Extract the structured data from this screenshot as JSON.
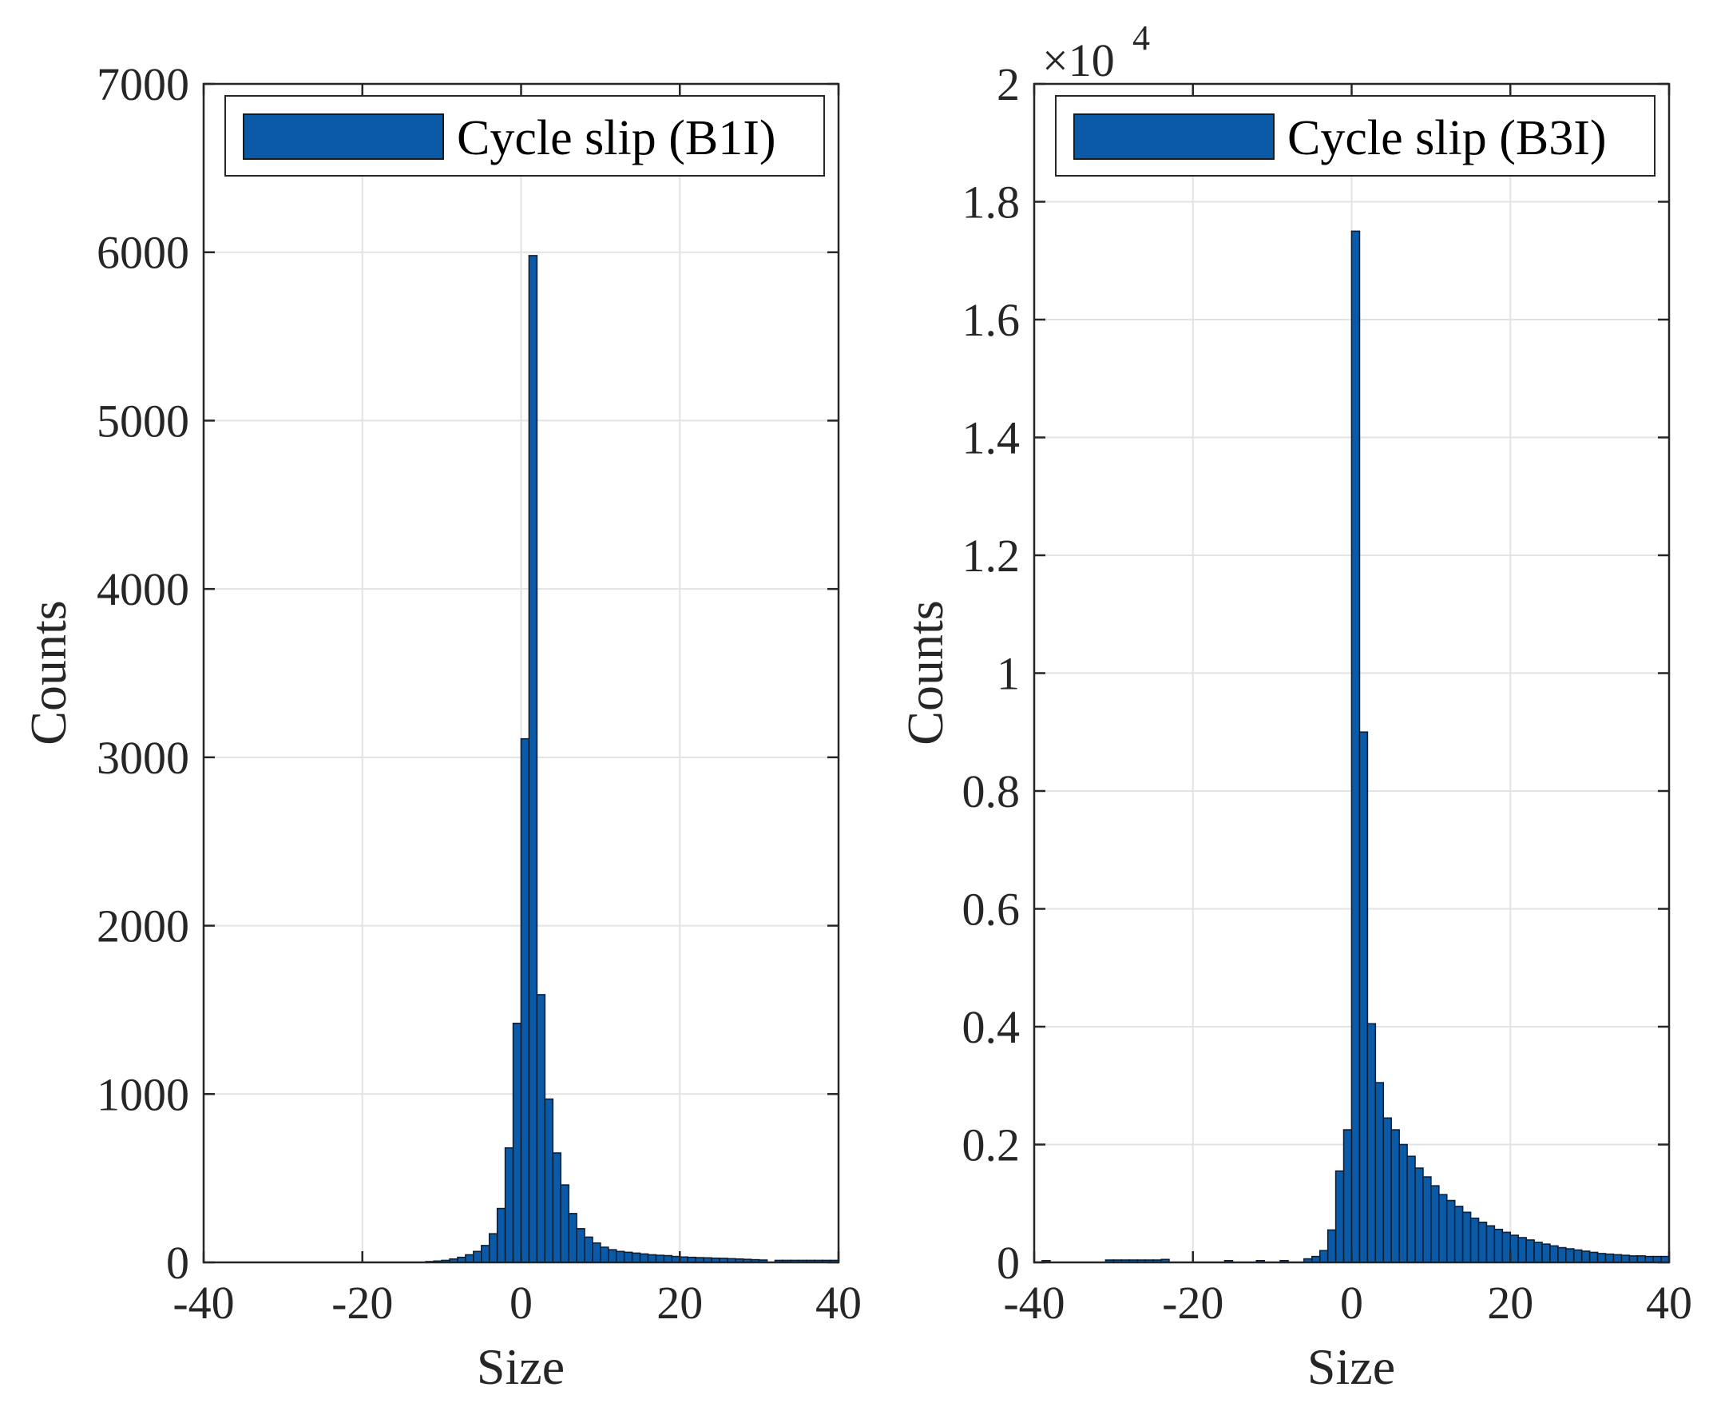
{
  "chart_data": [
    {
      "type": "bar",
      "title": "",
      "xlabel": "Size",
      "ylabel": "Counts",
      "legend": "Cycle slip (B1I)",
      "legend_position": "top",
      "xlim": [
        -40,
        40
      ],
      "ylim": [
        0,
        7000
      ],
      "grid": true,
      "bin_width": 1,
      "xticks": [
        -40,
        -20,
        0,
        20,
        40
      ],
      "xtick_labels": [
        "-40",
        "-20",
        "0",
        "20",
        "40"
      ],
      "yticks": [
        0,
        1000,
        2000,
        3000,
        4000,
        5000,
        6000,
        7000
      ],
      "ytick_labels": [
        "0",
        "1000",
        "2000",
        "3000",
        "4000",
        "5000",
        "6000",
        "7000"
      ],
      "exponent_label": "",
      "bin_starts": [
        -12,
        -11,
        -10,
        -9,
        -8,
        -7,
        -6,
        -5,
        -4,
        -3,
        -2,
        -1,
        0,
        1,
        2,
        3,
        4,
        5,
        6,
        7,
        8,
        9,
        10,
        11,
        12,
        13,
        14,
        15,
        16,
        17,
        18,
        19,
        20,
        21,
        22,
        23,
        24,
        25,
        26,
        27,
        28,
        29,
        30,
        32,
        33,
        34,
        35,
        36,
        37,
        38,
        39
      ],
      "values": [
        5,
        8,
        12,
        20,
        30,
        45,
        65,
        100,
        170,
        320,
        680,
        1420,
        3110,
        5980,
        1590,
        970,
        650,
        460,
        290,
        200,
        150,
        115,
        90,
        75,
        65,
        60,
        55,
        50,
        45,
        42,
        40,
        35,
        32,
        30,
        28,
        27,
        25,
        24,
        22,
        20,
        18,
        16,
        14,
        12,
        12,
        12,
        12,
        12,
        12,
        12,
        12
      ],
      "bar_color": "#0b5aa8"
    },
    {
      "type": "bar",
      "title": "",
      "xlabel": "Size",
      "ylabel": "Counts",
      "legend": "Cycle slip (B3I)",
      "legend_position": "top",
      "xlim": [
        -40,
        40
      ],
      "ylim": [
        0,
        20000
      ],
      "grid": true,
      "bin_width": 1,
      "xticks": [
        -40,
        -20,
        0,
        20,
        40
      ],
      "xtick_labels": [
        "-40",
        "-20",
        "0",
        "20",
        "40"
      ],
      "yticks": [
        0,
        2000,
        4000,
        6000,
        8000,
        10000,
        12000,
        14000,
        16000,
        18000,
        20000
      ],
      "ytick_labels": [
        "0",
        "0.2",
        "0.4",
        "0.6",
        "0.8",
        "1",
        "1.2",
        "1.4",
        "1.6",
        "1.8",
        "2"
      ],
      "exponent_label": "×10",
      "exponent_power": "4",
      "bin_starts": [
        -39,
        -31,
        -30,
        -29,
        -28,
        -27,
        -26,
        -25,
        -24,
        -16,
        -12,
        -9,
        -6,
        -5,
        -4,
        -3,
        -2,
        -1,
        0,
        1,
        2,
        3,
        4,
        5,
        6,
        7,
        8,
        9,
        10,
        11,
        12,
        13,
        14,
        15,
        16,
        17,
        18,
        19,
        20,
        21,
        22,
        23,
        24,
        25,
        26,
        27,
        28,
        29,
        30,
        31,
        32,
        33,
        34,
        35,
        36,
        37,
        38,
        39
      ],
      "values": [
        30,
        40,
        40,
        40,
        40,
        40,
        40,
        40,
        50,
        30,
        30,
        30,
        60,
        100,
        200,
        550,
        1550,
        2250,
        17500,
        9000,
        4050,
        3050,
        2450,
        2250,
        2000,
        1800,
        1600,
        1450,
        1300,
        1150,
        1050,
        950,
        850,
        750,
        680,
        620,
        560,
        510,
        460,
        420,
        380,
        340,
        310,
        280,
        250,
        230,
        210,
        190,
        170,
        150,
        140,
        130,
        120,
        110,
        110,
        100,
        100,
        100
      ],
      "bar_color": "#0b5aa8"
    }
  ]
}
